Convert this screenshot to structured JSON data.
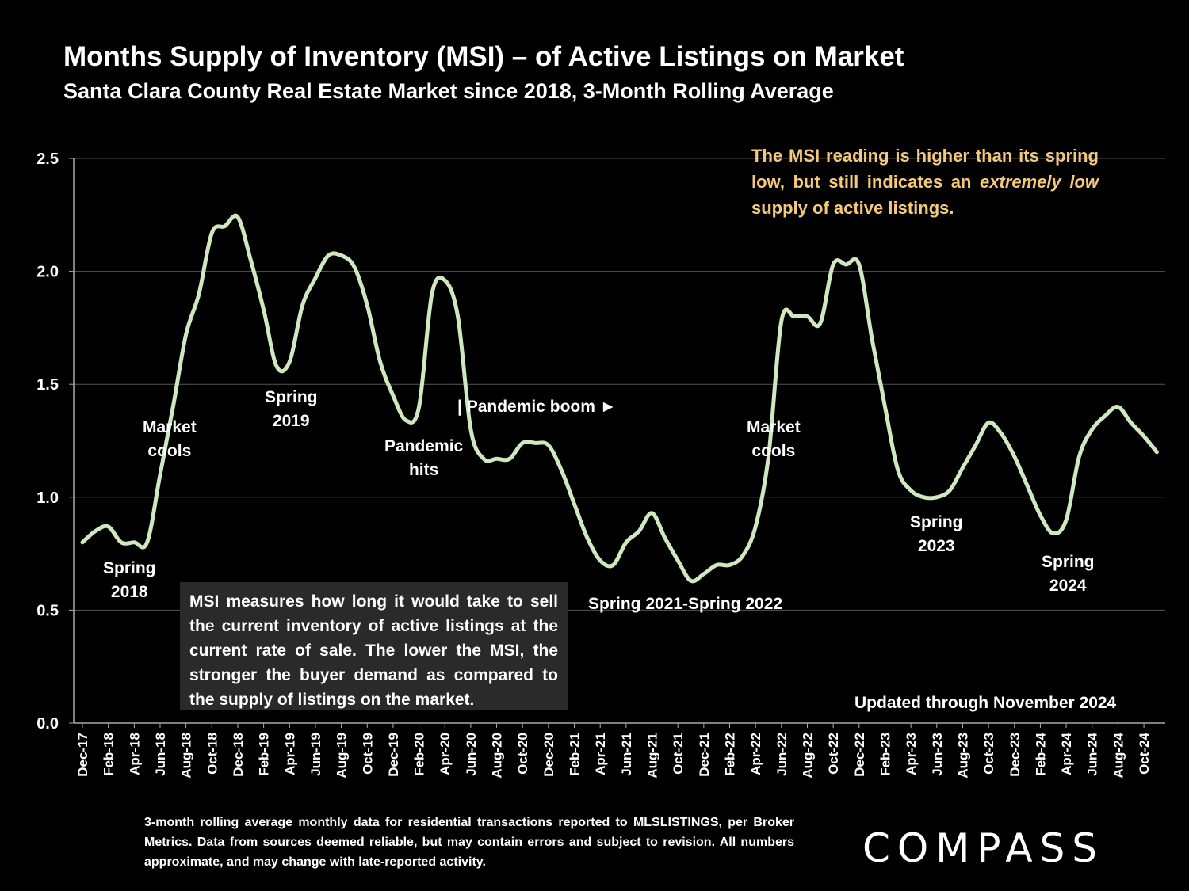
{
  "title": "Months Supply of Inventory (MSI) – of Active Listings on Market",
  "subtitle": "Santa Clara County Real Estate Market since 2018, 3-Month Rolling Average",
  "callout": {
    "part1": "The MSI reading is higher than its spring low, but still indicates an ",
    "emphasis": "extremely low",
    "part2": " supply of active listings."
  },
  "note_box": "MSI measures how long it would take to sell the current inventory of active listings at the current rate of sale. The lower the MSI, the stronger the buyer demand as compared to the supply of listings on the market.",
  "updated": "Updated through November 2024",
  "footnote": "3-month rolling average monthly data for residential transactions reported to MLSLISTINGS, per Broker Metrics. Data from sources deemed reliable, but may contain errors and subject to revision. All numbers approximate, and may change with late-reported activity.",
  "logo": "COMPASS",
  "annotations": {
    "spring2018": [
      "Spring",
      "2018"
    ],
    "market_cools_1": [
      "Market",
      "cools"
    ],
    "spring2019": [
      "Spring",
      "2019"
    ],
    "pandemic_hits": [
      "Pandemic",
      "hits"
    ],
    "pandemic_boom": "| Pandemic boom ►",
    "spring2021_2022": "Spring 2021-Spring 2022",
    "market_cools_2": [
      "Market",
      "cools"
    ],
    "spring2023": [
      "Spring",
      "2023"
    ],
    "spring2024": [
      "Spring",
      "2024"
    ]
  },
  "colors": {
    "line": "#cfe8c0",
    "callout": "#f5c97a",
    "background": "#000000"
  },
  "chart_data": {
    "type": "line",
    "title": "Months Supply of Inventory (MSI) – of Active Listings on Market",
    "ylim": [
      0,
      2.5
    ],
    "yticks": [
      "0.0",
      "0.5",
      "1.0",
      "1.5",
      "2.0",
      "2.5"
    ],
    "xtick_labels": [
      "Dec-17",
      "Feb-18",
      "Apr-18",
      "Jun-18",
      "Aug-18",
      "Oct-18",
      "Dec-18",
      "Feb-19",
      "Apr-19",
      "Jun-19",
      "Aug-19",
      "Oct-19",
      "Dec-19",
      "Feb-20",
      "Apr-20",
      "Jun-20",
      "Aug-20",
      "Oct-20",
      "Dec-20",
      "Feb-21",
      "Apr-21",
      "Jun-21",
      "Aug-21",
      "Oct-21",
      "Dec-21",
      "Feb-22",
      "Apr-22",
      "Jun-22",
      "Aug-22",
      "Oct-22",
      "Dec-22",
      "Feb-23",
      "Apr-23",
      "Jun-23",
      "Aug-23",
      "Oct-23",
      "Dec-23",
      "Feb-24",
      "Apr-24",
      "Jun-24",
      "Aug-24",
      "Oct-24"
    ],
    "grid": true,
    "series": [
      {
        "x": [
          "Dec-17",
          "Jan-18",
          "Feb-18",
          "Mar-18",
          "Apr-18",
          "May-18",
          "Jun-18",
          "Jul-18",
          "Aug-18",
          "Sep-18",
          "Oct-18",
          "Nov-18",
          "Dec-18",
          "Jan-19",
          "Feb-19",
          "Mar-19",
          "Apr-19",
          "May-19",
          "Jun-19",
          "Jul-19",
          "Aug-19",
          "Sep-19",
          "Oct-19",
          "Nov-19",
          "Dec-19",
          "Jan-20",
          "Feb-20",
          "Mar-20",
          "Apr-20",
          "May-20",
          "Jun-20",
          "Jul-20",
          "Aug-20",
          "Sep-20",
          "Oct-20",
          "Nov-20",
          "Dec-20",
          "Jan-21",
          "Feb-21",
          "Mar-21",
          "Apr-21",
          "May-21",
          "Jun-21",
          "Jul-21",
          "Aug-21",
          "Sep-21",
          "Oct-21",
          "Nov-21",
          "Dec-21",
          "Jan-22",
          "Feb-22",
          "Mar-22",
          "Apr-22",
          "May-22",
          "Jun-22",
          "Jul-22",
          "Aug-22",
          "Sep-22",
          "Oct-22",
          "Nov-22",
          "Dec-22",
          "Jan-23",
          "Feb-23",
          "Mar-23",
          "Apr-23",
          "May-23",
          "Jun-23",
          "Jul-23",
          "Aug-23",
          "Sep-23",
          "Oct-23",
          "Nov-23",
          "Dec-23",
          "Jan-24",
          "Feb-24",
          "Mar-24",
          "Apr-24",
          "May-24",
          "Jun-24",
          "Jul-24",
          "Aug-24",
          "Sep-24",
          "Oct-24",
          "Nov-24"
        ],
        "values": [
          0.8,
          0.85,
          0.87,
          0.8,
          0.8,
          0.8,
          1.1,
          1.4,
          1.72,
          1.9,
          2.17,
          2.2,
          2.24,
          2.05,
          1.83,
          1.58,
          1.6,
          1.85,
          1.97,
          2.07,
          2.07,
          2.02,
          1.85,
          1.6,
          1.45,
          1.34,
          1.4,
          1.9,
          1.96,
          1.8,
          1.3,
          1.17,
          1.17,
          1.17,
          1.24,
          1.24,
          1.23,
          1.12,
          0.97,
          0.82,
          0.72,
          0.7,
          0.8,
          0.85,
          0.93,
          0.82,
          0.72,
          0.63,
          0.66,
          0.7,
          0.7,
          0.74,
          0.87,
          1.18,
          1.78,
          1.8,
          1.8,
          1.77,
          2.03,
          2.03,
          2.03,
          1.7,
          1.4,
          1.12,
          1.03,
          1.0,
          1.0,
          1.03,
          1.13,
          1.23,
          1.33,
          1.28,
          1.18,
          1.05,
          0.92,
          0.84,
          0.9,
          1.18,
          1.3,
          1.36,
          1.4,
          1.33,
          1.27,
          1.2
        ]
      }
    ]
  }
}
